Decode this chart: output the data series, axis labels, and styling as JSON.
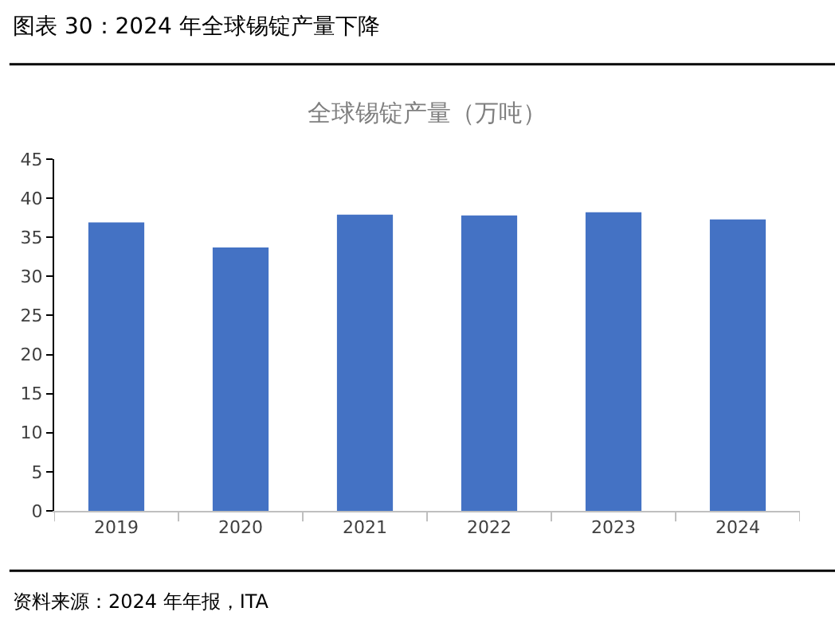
{
  "chart_data": {
    "type": "bar",
    "title": "图表 30：2024 年全球锡锭产量下降",
    "subtitle": "全球锡锭产量（万吨）",
    "categories": [
      "2019",
      "2020",
      "2021",
      "2022",
      "2023",
      "2024"
    ],
    "values": [
      36.9,
      33.7,
      37.9,
      37.8,
      38.2,
      37.3
    ],
    "color": "#4472c4",
    "ylim": [
      0,
      45
    ],
    "yticks": [
      0,
      5,
      10,
      15,
      20,
      25,
      30,
      35,
      40,
      45
    ],
    "annotations": [
      "资料来源：2024 年年报，ITA"
    ]
  }
}
